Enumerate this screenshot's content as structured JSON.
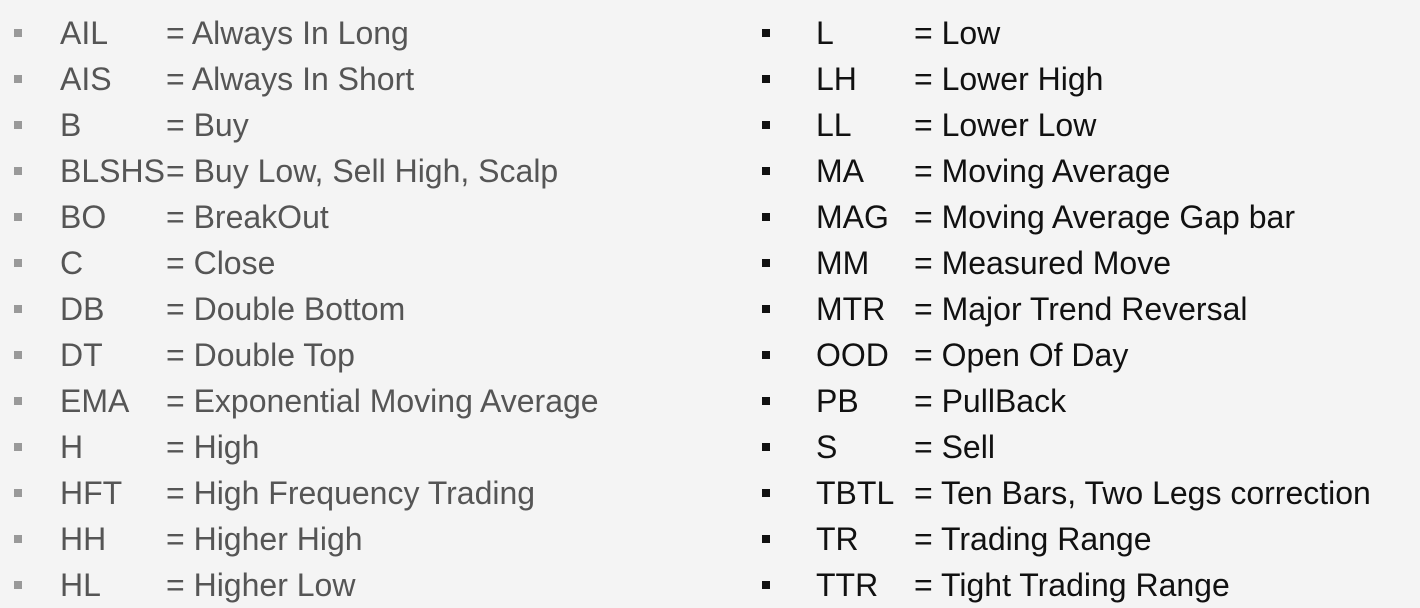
{
  "left_column": [
    {
      "abbr": "AIL",
      "def": "= Always In Long"
    },
    {
      "abbr": "AIS",
      "def": "= Always In Short"
    },
    {
      "abbr": "B",
      "def": "=  Buy"
    },
    {
      "abbr": "BLSHS",
      "def": "= Buy Low, Sell High, Scalp"
    },
    {
      "abbr": "BO",
      "def": "= BreakOut"
    },
    {
      "abbr": "C",
      "def": "= Close"
    },
    {
      "abbr": "DB",
      "def": "= Double Bottom"
    },
    {
      "abbr": "DT",
      "def": "= Double Top"
    },
    {
      "abbr": "EMA",
      "def": "= Exponential Moving Average"
    },
    {
      "abbr": "H",
      "def": "= High"
    },
    {
      "abbr": "HFT",
      "def": "= High Frequency Trading"
    },
    {
      "abbr": "HH",
      "def": "= Higher High"
    },
    {
      "abbr": "HL",
      "def": "= Higher Low"
    }
  ],
  "right_column": [
    {
      "abbr": "L",
      "def": "= Low"
    },
    {
      "abbr": "LH",
      "def": "= Lower High"
    },
    {
      "abbr": "LL",
      "def": "= Lower Low"
    },
    {
      "abbr": "MA",
      "def": "= Moving Average"
    },
    {
      "abbr": "MAG",
      "def": "= Moving Average Gap bar"
    },
    {
      "abbr": "MM",
      "def": "= Measured Move"
    },
    {
      "abbr": "MTR",
      "def": "= Major Trend Reversal"
    },
    {
      "abbr": "OOD",
      "def": "= Open Of Day"
    },
    {
      "abbr": "PB",
      "def": "= PullBack"
    },
    {
      "abbr": "S",
      "def": "= Sell"
    },
    {
      "abbr": "TBTL",
      "def": "= Ten Bars, Two Legs correction"
    },
    {
      "abbr": "TR",
      "def": "= Trading Range"
    },
    {
      "abbr": "TTR",
      "def": "= Tight Trading Range"
    }
  ],
  "colors": {
    "background": "#f4f4f4",
    "left_text": "#555555",
    "right_text": "#111111",
    "left_bullet": "#999999",
    "right_bullet": "#111111"
  },
  "icons": {
    "bullet": "square-bullet-icon"
  }
}
